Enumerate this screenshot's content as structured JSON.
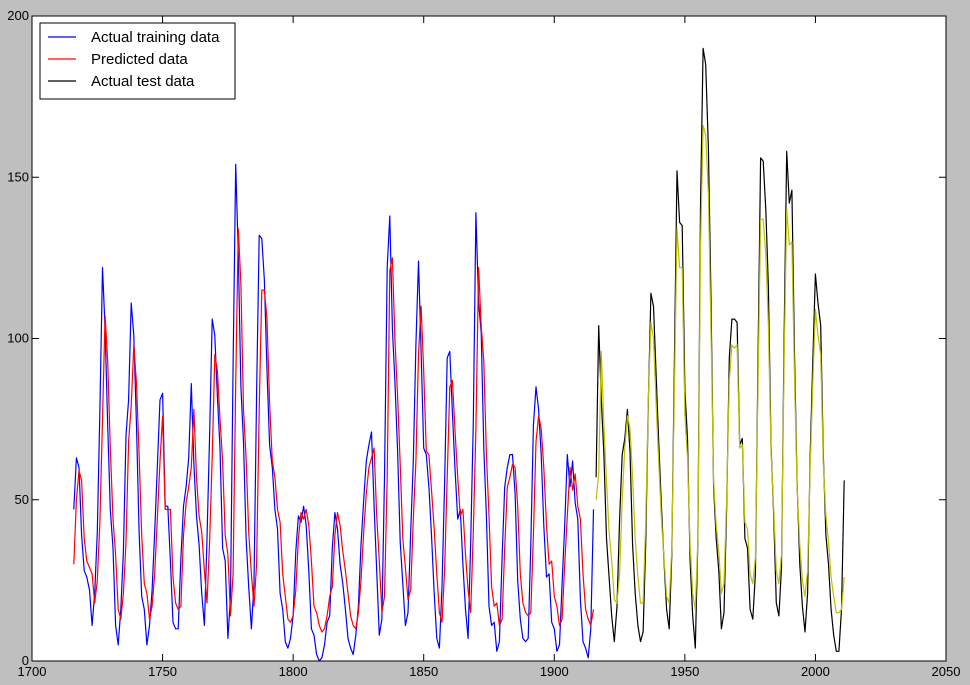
{
  "chart_data": {
    "type": "line",
    "title": "",
    "xlabel": "",
    "ylabel": "",
    "xlim": [
      1700,
      2050
    ],
    "ylim": [
      0,
      200
    ],
    "xticks": [
      1700,
      1750,
      1800,
      1850,
      1900,
      1950,
      2000,
      2050
    ],
    "yticks": [
      0,
      50,
      100,
      150,
      200
    ],
    "grid": false,
    "legend_position": "top-left",
    "series": [
      {
        "name": "Actual training data",
        "color": "#0000ff",
        "x": [
          1716,
          1717,
          1718,
          1719,
          1720,
          1721,
          1722,
          1723,
          1724,
          1725,
          1726,
          1727,
          1728,
          1729,
          1730,
          1731,
          1732,
          1733,
          1734,
          1735,
          1736,
          1737,
          1738,
          1739,
          1740,
          1741,
          1742,
          1743,
          1744,
          1745,
          1746,
          1747,
          1748,
          1749,
          1750,
          1751,
          1752,
          1753,
          1754,
          1755,
          1756,
          1757,
          1758,
          1759,
          1760,
          1761,
          1762,
          1763,
          1764,
          1765,
          1766,
          1767,
          1768,
          1769,
          1770,
          1771,
          1772,
          1773,
          1774,
          1775,
          1776,
          1777,
          1778,
          1779,
          1780,
          1781,
          1782,
          1783,
          1784,
          1785,
          1786,
          1787,
          1788,
          1789,
          1790,
          1791,
          1792,
          1793,
          1794,
          1795,
          1796,
          1797,
          1798,
          1799,
          1800,
          1801,
          1802,
          1803,
          1804,
          1805,
          1806,
          1807,
          1808,
          1809,
          1810,
          1811,
          1812,
          1813,
          1814,
          1815,
          1816,
          1817,
          1818,
          1819,
          1820,
          1821,
          1822,
          1823,
          1824,
          1825,
          1826,
          1827,
          1828,
          1829,
          1830,
          1831,
          1832,
          1833,
          1834,
          1835,
          1836,
          1837,
          1838,
          1839,
          1840,
          1841,
          1842,
          1843,
          1844,
          1845,
          1846,
          1847,
          1848,
          1849,
          1850,
          1851,
          1852,
          1853,
          1854,
          1855,
          1856,
          1857,
          1858,
          1859,
          1860,
          1861,
          1862,
          1863,
          1864,
          1865,
          1866,
          1867,
          1868,
          1869,
          1870,
          1871,
          1872,
          1873,
          1874,
          1875,
          1876,
          1877,
          1878,
          1879,
          1880,
          1881,
          1882,
          1883,
          1884,
          1885,
          1886,
          1887,
          1888,
          1889,
          1890,
          1891,
          1892,
          1893,
          1894,
          1895,
          1896,
          1897,
          1898,
          1899,
          1900,
          1901,
          1902,
          1903,
          1904,
          1905,
          1906,
          1907,
          1908,
          1909,
          1910,
          1911,
          1912,
          1913,
          1914,
          1915
        ],
        "y": [
          47,
          63,
          60,
          39,
          28,
          26,
          22,
          11,
          21,
          40,
          78,
          122,
          103,
          73,
          47,
          35,
          11,
          5,
          16,
          34,
          70,
          81,
          111,
          101,
          73,
          40,
          20,
          16,
          5,
          11,
          22,
          40,
          60,
          81,
          83,
          48,
          48,
          31,
          12,
          10,
          10,
          32,
          48,
          54,
          63,
          86,
          61,
          45,
          36,
          21,
          11,
          38,
          70,
          106,
          101,
          82,
          66,
          35,
          31,
          7,
          20,
          92,
          154,
          126,
          85,
          68,
          38,
          23,
          10,
          24,
          83,
          132,
          131,
          118,
          90,
          67,
          60,
          47,
          41,
          21,
          16,
          6,
          4,
          7,
          14,
          34,
          45,
          43,
          48,
          42,
          28,
          10,
          8,
          2,
          0,
          1,
          5,
          12,
          14,
          35,
          46,
          41,
          30,
          24,
          16,
          7,
          4,
          2,
          8,
          17,
          36,
          50,
          62,
          67,
          71,
          48,
          28,
          8,
          13,
          57,
          122,
          138,
          103,
          86,
          65,
          37,
          24,
          11,
          15,
          40,
          62,
          98,
          124,
          96,
          66,
          64,
          54,
          39,
          21,
          7,
          4,
          23,
          55,
          94,
          96,
          77,
          59,
          44,
          47,
          30,
          16,
          7,
          37,
          74,
          139,
          111,
          102,
          66,
          45,
          17,
          11,
          12,
          3,
          6,
          32,
          54,
          60,
          64,
          64,
          52,
          25,
          13,
          7,
          6,
          7,
          36,
          73,
          85,
          78,
          64,
          42,
          26,
          27,
          12,
          10,
          3,
          5,
          24,
          42,
          64,
          54,
          62,
          49,
          44,
          19,
          6,
          4,
          1,
          10,
          47
        ]
      },
      {
        "name": "Predicted data",
        "color": "#ff0000",
        "x": [
          1716,
          1717,
          1718,
          1719,
          1720,
          1721,
          1722,
          1723,
          1724,
          1725,
          1726,
          1727,
          1728,
          1729,
          1730,
          1731,
          1732,
          1733,
          1734,
          1735,
          1736,
          1737,
          1738,
          1739,
          1740,
          1741,
          1742,
          1743,
          1744,
          1745,
          1746,
          1747,
          1748,
          1749,
          1750,
          1751,
          1752,
          1753,
          1754,
          1755,
          1756,
          1757,
          1758,
          1759,
          1760,
          1761,
          1762,
          1763,
          1764,
          1765,
          1766,
          1767,
          1768,
          1769,
          1770,
          1771,
          1772,
          1773,
          1774,
          1775,
          1776,
          1777,
          1778,
          1779,
          1780,
          1781,
          1782,
          1783,
          1784,
          1785,
          1786,
          1787,
          1788,
          1789,
          1790,
          1791,
          1792,
          1793,
          1794,
          1795,
          1796,
          1797,
          1798,
          1799,
          1800,
          1801,
          1802,
          1803,
          1804,
          1805,
          1806,
          1807,
          1808,
          1809,
          1810,
          1811,
          1812,
          1813,
          1814,
          1815,
          1816,
          1817,
          1818,
          1819,
          1820,
          1821,
          1822,
          1823,
          1824,
          1825,
          1826,
          1827,
          1828,
          1829,
          1830,
          1831,
          1832,
          1833,
          1834,
          1835,
          1836,
          1837,
          1838,
          1839,
          1840,
          1841,
          1842,
          1843,
          1844,
          1845,
          1846,
          1847,
          1848,
          1849,
          1850,
          1851,
          1852,
          1853,
          1854,
          1855,
          1856,
          1857,
          1858,
          1859,
          1860,
          1861,
          1862,
          1863,
          1864,
          1865,
          1866,
          1867,
          1868,
          1869,
          1870,
          1871,
          1872,
          1873,
          1874,
          1875,
          1876,
          1877,
          1878,
          1879,
          1880,
          1881,
          1882,
          1883,
          1884,
          1885,
          1886,
          1887,
          1888,
          1889,
          1890,
          1891,
          1892,
          1893,
          1894,
          1895,
          1896,
          1897,
          1898,
          1899,
          1900,
          1901,
          1902,
          1903,
          1904,
          1905,
          1906,
          1907,
          1908,
          1909,
          1910,
          1911,
          1912,
          1913,
          1914,
          1915
        ],
        "y": [
          30,
          50,
          59,
          56,
          38,
          31,
          29,
          27,
          18,
          25,
          43,
          75,
          107,
          93,
          66,
          44,
          33,
          16,
          13,
          21,
          37,
          68,
          79,
          98,
          86,
          64,
          39,
          24,
          21,
          13,
          17,
          27,
          44,
          62,
          76,
          47,
          47,
          47,
          26,
          18,
          16,
          17,
          39,
          49,
          54,
          60,
          78,
          57,
          45,
          40,
          28,
          18,
          37,
          63,
          95,
          90,
          75,
          62,
          39,
          33,
          14,
          27,
          86,
          134,
          117,
          78,
          63,
          40,
          27,
          17,
          30,
          78,
          115,
          115,
          106,
          80,
          62,
          57,
          47,
          43,
          27,
          20,
          13,
          12,
          14,
          22,
          38,
          46,
          44,
          47,
          42,
          31,
          17,
          15,
          11,
          9,
          10,
          14,
          20,
          23,
          39,
          46,
          42,
          34,
          28,
          21,
          14,
          11,
          10,
          15,
          25,
          40,
          52,
          60,
          63,
          66,
          45,
          31,
          15,
          20,
          57,
          121,
          125,
          99,
          82,
          61,
          38,
          29,
          19,
          22,
          44,
          62,
          95,
          110,
          90,
          65,
          64,
          53,
          41,
          27,
          15,
          12,
          28,
          57,
          85,
          87,
          71,
          57,
          45,
          47,
          33,
          22,
          15,
          40,
          72,
          122,
          104,
          93,
          64,
          45,
          23,
          17,
          18,
          11,
          13,
          35,
          54,
          57,
          61,
          60,
          48,
          27,
          18,
          15,
          14,
          15,
          39,
          68,
          76,
          72,
          60,
          42,
          30,
          31,
          20,
          17,
          11,
          13,
          30,
          45,
          60,
          53,
          58,
          48,
          44,
          27,
          16,
          13,
          11,
          16
        ]
      },
      {
        "name": "Actual test data",
        "color": "#000000",
        "x": [
          1916,
          1917,
          1918,
          1919,
          1920,
          1921,
          1922,
          1923,
          1924,
          1925,
          1926,
          1927,
          1928,
          1929,
          1930,
          1931,
          1932,
          1933,
          1934,
          1935,
          1936,
          1937,
          1938,
          1939,
          1940,
          1941,
          1942,
          1943,
          1944,
          1945,
          1946,
          1947,
          1948,
          1949,
          1950,
          1951,
          1952,
          1953,
          1954,
          1955,
          1956,
          1957,
          1958,
          1959,
          1960,
          1961,
          1962,
          1963,
          1964,
          1965,
          1966,
          1967,
          1968,
          1969,
          1970,
          1971,
          1972,
          1973,
          1974,
          1975,
          1976,
          1977,
          1978,
          1979,
          1980,
          1981,
          1982,
          1983,
          1984,
          1985,
          1986,
          1987,
          1988,
          1989,
          1990,
          1991,
          1992,
          1993,
          1994,
          1995,
          1996,
          1997,
          1998,
          1999,
          2000,
          2001,
          2002,
          2003,
          2004,
          2005,
          2006,
          2007,
          2008,
          2009,
          2010,
          2011
        ],
        "y": [
          57,
          104,
          81,
          64,
          38,
          26,
          14,
          6,
          17,
          44,
          64,
          69,
          78,
          65,
          36,
          21,
          11,
          6,
          9,
          36,
          80,
          114,
          110,
          89,
          68,
          48,
          31,
          16,
          10,
          33,
          93,
          152,
          136,
          135,
          84,
          69,
          31,
          14,
          4,
          38,
          141,
          190,
          185,
          159,
          112,
          54,
          38,
          28,
          10,
          15,
          47,
          94,
          106,
          106,
          105,
          67,
          69,
          38,
          35,
          16,
          13,
          27,
          93,
          156,
          155,
          140,
          116,
          67,
          46,
          18,
          14,
          29,
          100,
          158,
          142,
          146,
          95,
          55,
          30,
          17,
          9,
          21,
          64,
          93,
          120,
          111,
          104,
          64,
          39,
          30,
          16,
          8,
          3,
          3,
          16,
          56
        ]
      },
      {
        "name": "",
        "color": "#bfbf00",
        "x": [
          1916,
          1917,
          1918,
          1919,
          1920,
          1921,
          1922,
          1923,
          1924,
          1925,
          1926,
          1927,
          1928,
          1929,
          1930,
          1931,
          1932,
          1933,
          1934,
          1935,
          1936,
          1937,
          1938,
          1939,
          1940,
          1941,
          1942,
          1943,
          1944,
          1945,
          1946,
          1947,
          1948,
          1949,
          1950,
          1951,
          1952,
          1953,
          1954,
          1955,
          1956,
          1957,
          1958,
          1959,
          1960,
          1961,
          1962,
          1963,
          1964,
          1965,
          1966,
          1967,
          1968,
          1969,
          1970,
          1971,
          1972,
          1973,
          1974,
          1975,
          1976,
          1977,
          1978,
          1979,
          1980,
          1981,
          1982,
          1983,
          1984,
          1985,
          1986,
          1987,
          1988,
          1989,
          1990,
          1991,
          1992,
          1993,
          1994,
          1995,
          1996,
          1997,
          1998,
          1999,
          2000,
          2001,
          2002,
          2003,
          2004,
          2005,
          2006,
          2007,
          2008,
          2009,
          2010,
          2011
        ],
        "y": [
          50,
          58,
          96,
          73,
          56,
          40,
          31,
          19,
          18,
          27,
          50,
          66,
          76,
          72,
          57,
          38,
          26,
          18,
          18,
          43,
          81,
          105,
          100,
          80,
          62,
          44,
          32,
          20,
          18,
          35,
          84,
          134,
          122,
          122,
          76,
          63,
          36,
          21,
          16,
          38,
          128,
          166,
          163,
          145,
          102,
          56,
          42,
          34,
          21,
          24,
          50,
          87,
          98,
          97,
          98,
          66,
          67,
          43,
          41,
          27,
          24,
          32,
          85,
          137,
          137,
          126,
          104,
          65,
          48,
          28,
          24,
          33,
          92,
          140,
          129,
          130,
          88,
          54,
          36,
          25,
          20,
          28,
          60,
          86,
          109,
          101,
          95,
          61,
          45,
          37,
          26,
          20,
          15,
          15,
          16,
          26
        ]
      }
    ]
  }
}
